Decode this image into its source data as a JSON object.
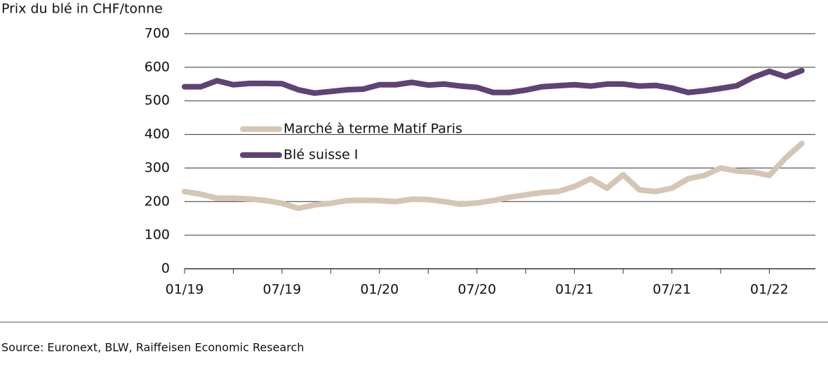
{
  "chart_data": {
    "type": "line",
    "title": "Prix du blé in CHF/tonne",
    "source": "Source: Euronext, BLW, Raiffeisen Economic Research",
    "categories": [
      "01/19",
      null,
      null,
      null,
      null,
      null,
      "07/19",
      null,
      null,
      null,
      null,
      null,
      "01/20",
      null,
      null,
      null,
      null,
      null,
      "07/20",
      null,
      null,
      null,
      null,
      null,
      "01/21",
      null,
      null,
      null,
      null,
      null,
      "07/21",
      null,
      null,
      null,
      null,
      null,
      "01/22",
      null,
      null
    ],
    "series": [
      {
        "name": "Marché à terme Matif Paris",
        "color": "#d5c6b4",
        "values": [
          230,
          222,
          210,
          210,
          208,
          203,
          195,
          180,
          190,
          195,
          203,
          204,
          203,
          200,
          207,
          206,
          200,
          192,
          196,
          203,
          213,
          220,
          227,
          230,
          245,
          268,
          240,
          280,
          235,
          230,
          240,
          268,
          278,
          300,
          291,
          288,
          278,
          330,
          373
        ]
      },
      {
        "name": "Blé suisse I",
        "color": "#5e4374",
        "values": [
          542,
          542,
          560,
          548,
          552,
          552,
          551,
          533,
          523,
          528,
          533,
          535,
          548,
          548,
          555,
          547,
          550,
          544,
          540,
          525,
          525,
          532,
          542,
          545,
          548,
          544,
          550,
          550,
          544,
          546,
          538,
          525,
          530,
          537,
          545,
          570,
          588,
          572,
          590
        ]
      }
    ],
    "ylim": [
      0,
      700
    ],
    "yticks": [
      0,
      100,
      200,
      300,
      400,
      500,
      600,
      700
    ],
    "grid": true
  }
}
